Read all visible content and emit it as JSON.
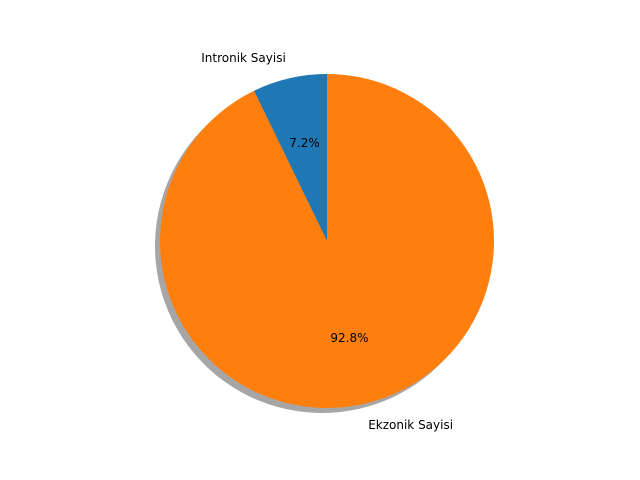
{
  "chart_data": {
    "type": "pie",
    "title": "",
    "labels": [
      "Intronik Sayisi",
      "Ekzonik Sayisi"
    ],
    "values": [
      7.2,
      92.8
    ],
    "percent_labels": [
      "7.2%",
      "92.8%"
    ],
    "colors": [
      "#1f77b4",
      "#ff7f0e"
    ],
    "shadow": true,
    "start_angle_deg": 90,
    "direction": "counterclockwise",
    "legend": "none"
  }
}
